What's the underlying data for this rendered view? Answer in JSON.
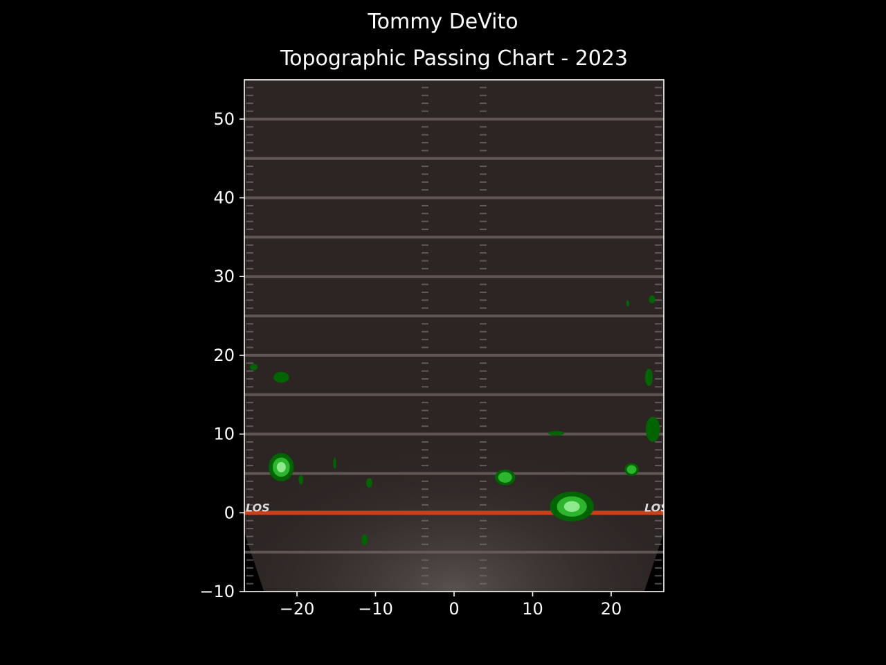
{
  "figure": {
    "suptitle": "Tommy DeVito",
    "title": "Topographic Passing Chart - 2023"
  },
  "chart_data": {
    "type": "contour",
    "suptitle": "Tommy DeVito",
    "title": "Topographic Passing Chart - 2023",
    "xlabel": "",
    "ylabel": "",
    "xlim": [
      -26.7,
      26.7
    ],
    "ylim": [
      -10,
      55
    ],
    "x_ticks": [
      -20,
      -10,
      0,
      10,
      20
    ],
    "y_ticks": [
      -10,
      0,
      10,
      20,
      30,
      40,
      50
    ],
    "x_tick_labels": [
      "−20",
      "−10",
      "0",
      "10",
      "20"
    ],
    "y_tick_labels": [
      "−10",
      "0",
      "10",
      "20",
      "30",
      "40",
      "50"
    ],
    "background": "football field (dark), line of scrimmage at y = 0",
    "field_labels": [
      "LOS",
      "LOS"
    ],
    "line_of_scrimmage_y": 0,
    "colors": {
      "level1": "#006400",
      "level2": "#2db52d",
      "level3": "#8ee88e",
      "los_line": "#c8401a",
      "field": "#2c2524"
    },
    "density_clusters": [
      {
        "name": "deep-left-1",
        "x": -22.0,
        "y": 17.2,
        "rx": 1.0,
        "ry": 0.7,
        "level": 1
      },
      {
        "name": "deep-left-2",
        "x": -25.5,
        "y": 18.5,
        "rx": 0.5,
        "ry": 0.4,
        "level": 1
      },
      {
        "name": "short-left-main",
        "x": -22.0,
        "y": 5.8,
        "rx": 1.6,
        "ry": 1.8,
        "level": 3
      },
      {
        "name": "short-left-2",
        "x": -19.5,
        "y": 4.2,
        "rx": 0.3,
        "ry": 0.6,
        "level": 1
      },
      {
        "name": "short-left-3",
        "x": -15.2,
        "y": 6.3,
        "rx": 0.2,
        "ry": 0.7,
        "level": 1
      },
      {
        "name": "short-middle-left",
        "x": -10.8,
        "y": 3.8,
        "rx": 0.4,
        "ry": 0.6,
        "level": 1
      },
      {
        "name": "behind-los",
        "x": -11.4,
        "y": -3.4,
        "rx": 0.4,
        "ry": 0.7,
        "level": 1
      },
      {
        "name": "short-right-1",
        "x": 6.5,
        "y": 4.5,
        "rx": 1.3,
        "ry": 1.0,
        "level": 2
      },
      {
        "name": "medium-right",
        "x": 13.0,
        "y": 10.1,
        "rx": 1.0,
        "ry": 0.3,
        "level": 1
      },
      {
        "name": "los-right-main",
        "x": 15.0,
        "y": 0.8,
        "rx": 2.8,
        "ry": 1.9,
        "level": 3
      },
      {
        "name": "short-right-2",
        "x": 22.6,
        "y": 5.5,
        "rx": 0.9,
        "ry": 0.8,
        "level": 2
      },
      {
        "name": "medium-right-sideline",
        "x": 25.3,
        "y": 10.6,
        "rx": 0.9,
        "ry": 1.6,
        "level": 1
      },
      {
        "name": "deep-right-sideline",
        "x": 24.8,
        "y": 17.2,
        "rx": 0.5,
        "ry": 1.1,
        "level": 1
      },
      {
        "name": "deep-right-1",
        "x": 22.1,
        "y": 26.6,
        "rx": 0.2,
        "ry": 0.4,
        "level": 1
      },
      {
        "name": "deep-right-2",
        "x": 25.2,
        "y": 27.1,
        "rx": 0.4,
        "ry": 0.5,
        "level": 1
      }
    ]
  }
}
